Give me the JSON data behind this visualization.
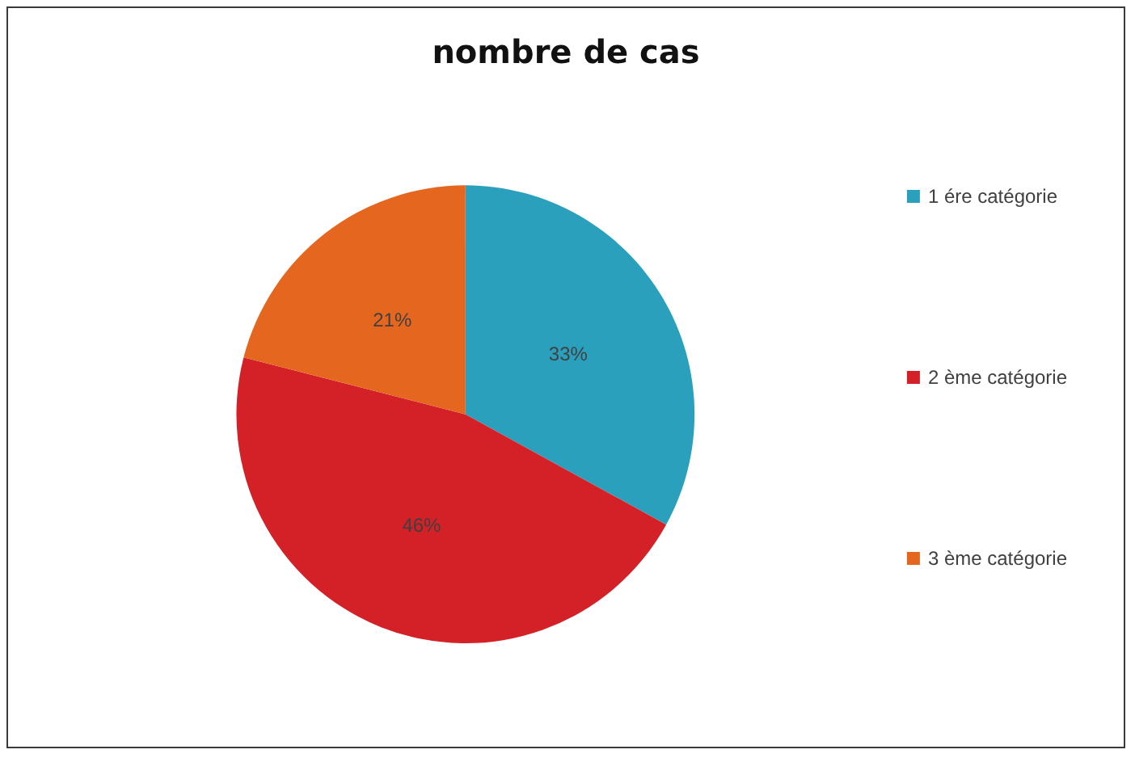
{
  "chart_data": {
    "type": "pie",
    "title": "nombre de cas",
    "categories": [
      "1 ére catégorie",
      "2 ème catégorie",
      "3 ème catégorie"
    ],
    "values": [
      33,
      46,
      21
    ],
    "colors": [
      "#2aa0bd",
      "#d42027",
      "#e5661e"
    ],
    "value_labels": [
      "33%",
      "46%",
      "21%"
    ],
    "legend": "right"
  }
}
